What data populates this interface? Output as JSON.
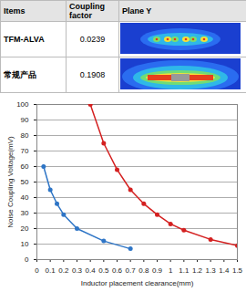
{
  "table": {
    "header": [
      "Items",
      "Coupling factor",
      "Plane Y"
    ],
    "rows": [
      [
        "TFM-ALVA",
        0.0239
      ],
      [
        "常规产品",
        0.1908
      ]
    ]
  },
  "chart_data": {
    "type": "line",
    "xlabel": "Inductor placement clearance(mm)",
    "ylabel": "Noise Coupling Voltage(mV)",
    "series": [
      {
        "color": "#2e75c6",
        "marker": "circle",
        "line_style": "solid",
        "x": [
          0.05,
          0.1,
          0.15,
          0.2,
          0.3,
          0.5,
          0.7
        ],
        "values": [
          60,
          45,
          36,
          29,
          20,
          12,
          7
        ]
      },
      {
        "color": "#d42020",
        "marker": "circle",
        "line_style": "solid",
        "x": [
          0.4,
          0.5,
          0.6,
          0.7,
          0.8,
          0.9,
          1.0,
          1.1,
          1.3,
          1.5
        ],
        "values": [
          100,
          75,
          58,
          45,
          36,
          29,
          23,
          19,
          13,
          9
        ]
      }
    ],
    "xlim": [
      0,
      1.5
    ],
    "xticks": [
      0,
      0.1,
      0.2,
      0.3,
      0.4,
      0.5,
      0.6,
      0.7,
      0.8,
      0.9,
      1,
      1.1,
      1.2,
      1.3,
      1.4,
      1.5
    ],
    "ylim": [
      0,
      100
    ],
    "yticks": [
      0,
      10,
      20,
      30,
      40,
      50,
      60,
      70,
      80,
      90,
      100
    ],
    "grid": true
  }
}
